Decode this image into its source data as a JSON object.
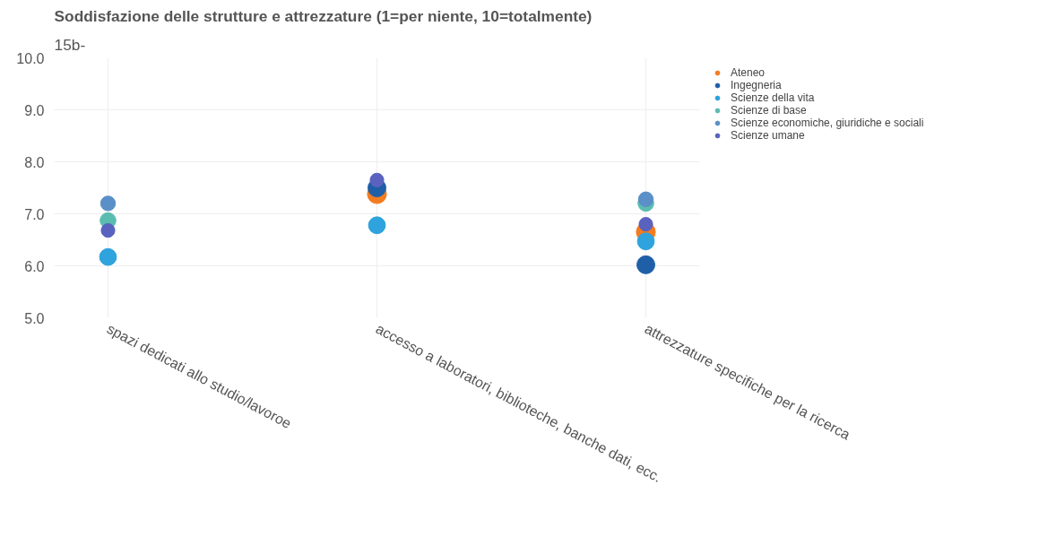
{
  "chart_data": {
    "type": "scatter",
    "title": "Soddisfazione delle strutture e attrezzature (1=per niente, 10=totalmente)",
    "annotations": [
      "15b-"
    ],
    "categories": [
      "spazi dedicati allo studio/lavoroe",
      "accesso a laboratori, biblioteche, banche dati, ecc.",
      "attrezzature specifiche per la ricerca"
    ],
    "series": [
      {
        "name": "Ateneo",
        "color": "#f47c20",
        "values": [
          null,
          7.38,
          6.65
        ]
      },
      {
        "name": "Ingegneria",
        "color": "#1f5fa8",
        "values": [
          null,
          7.5,
          6.02
        ]
      },
      {
        "name": "Scienze della vita",
        "color": "#2ea3dd",
        "values": [
          6.17,
          6.78,
          6.47
        ]
      },
      {
        "name": "Scienze di base",
        "color": "#5bbcb0",
        "values": [
          6.87,
          null,
          7.2
        ]
      },
      {
        "name": "Scienze economiche, giuridiche e sociali",
        "color": "#5b8fc7",
        "values": [
          7.2,
          null,
          7.28
        ]
      },
      {
        "name": "Scienze umane",
        "color": "#5a62bf",
        "values": [
          6.68,
          7.65,
          6.8
        ]
      }
    ],
    "ylim": [
      5,
      10
    ],
    "yticks": [
      {
        "value": 5,
        "label": "5.0"
      },
      {
        "value": 6,
        "label": "6.0"
      },
      {
        "value": 7,
        "label": "7.0"
      },
      {
        "value": 8,
        "label": "8.0"
      },
      {
        "value": 9,
        "label": "9.0"
      },
      {
        "value": 10,
        "label": "10.0"
      }
    ],
    "grid": true,
    "legend": "top right",
    "marker": "circle"
  }
}
